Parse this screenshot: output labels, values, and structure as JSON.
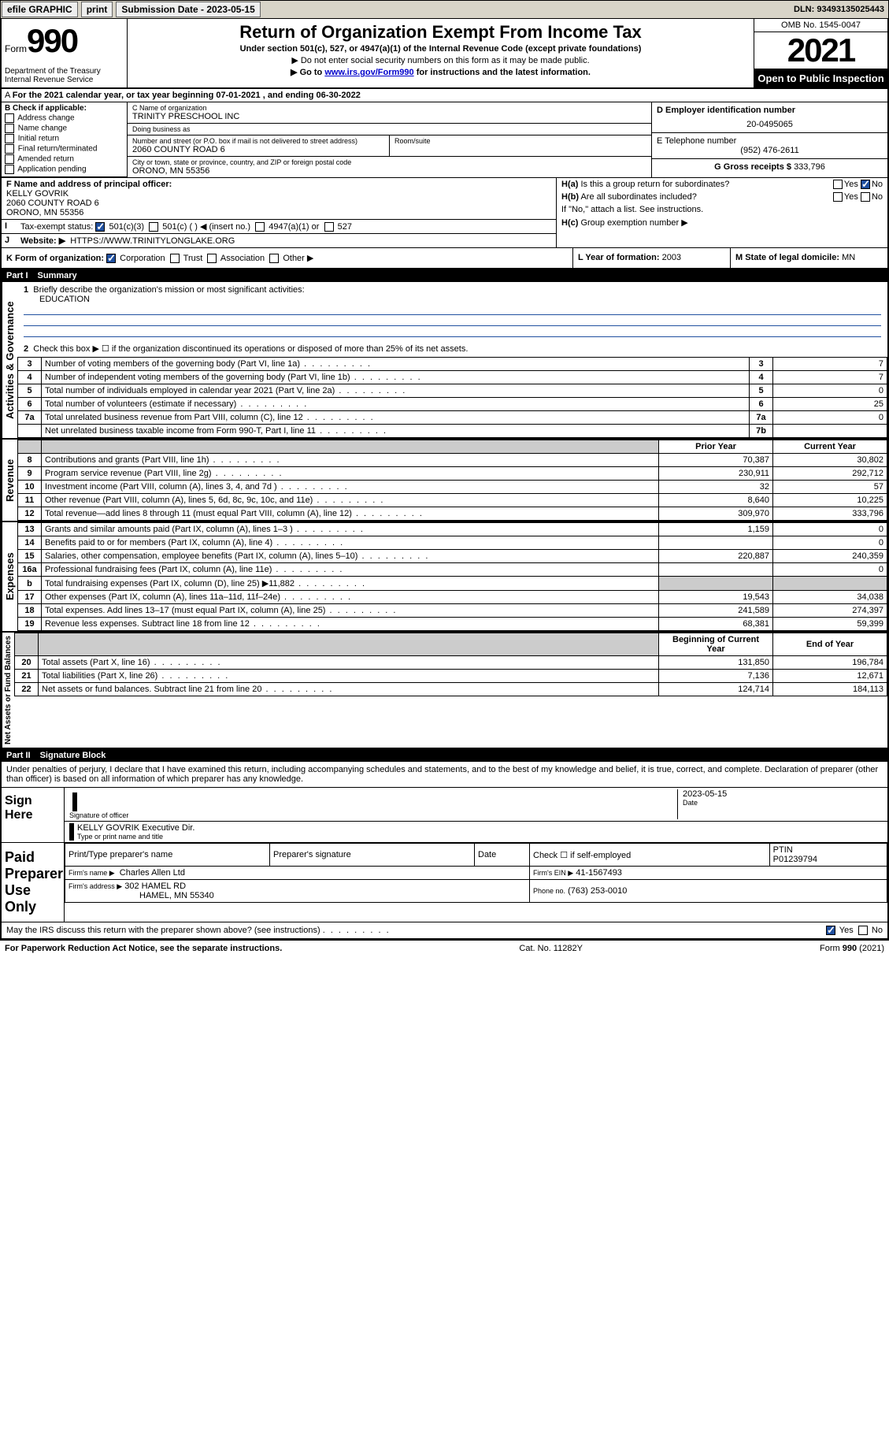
{
  "topbar": {
    "efile": "efile GRAPHIC",
    "print": "print",
    "submission": "Submission Date - 2023-05-15",
    "dln": "DLN: 93493135025443"
  },
  "header": {
    "form_label": "Form",
    "form_num": "990",
    "dept": "Department of the Treasury\nInternal Revenue Service",
    "title": "Return of Organization Exempt From Income Tax",
    "subtitle": "Under section 501(c), 527, or 4947(a)(1) of the Internal Revenue Code (except private foundations)",
    "note1": "▶ Do not enter social security numbers on this form as it may be made public.",
    "note2_pre": "▶ Go to ",
    "note2_link": "www.irs.gov/Form990",
    "note2_post": " for instructions and the latest information.",
    "omb": "OMB No. 1545-0047",
    "year": "2021",
    "open": "Open to Public Inspection"
  },
  "A": {
    "text": "For the 2021 calendar year, or tax year beginning 07-01-2021   , and ending 06-30-2022"
  },
  "B": {
    "label": "B Check if applicable:",
    "items": [
      "Address change",
      "Name change",
      "Initial return",
      "Final return/terminated",
      "Amended return",
      "Application pending"
    ]
  },
  "C": {
    "name_lbl": "C Name of organization",
    "name": "TRINITY PRESCHOOL INC",
    "dba_lbl": "Doing business as",
    "addr_lbl": "Number and street (or P.O. box if mail is not delivered to street address)",
    "room_lbl": "Room/suite",
    "addr": "2060 COUNTY ROAD 6",
    "city_lbl": "City or town, state or province, country, and ZIP or foreign postal code",
    "city": "ORONO, MN  55356"
  },
  "D": {
    "lbl": "D Employer identification number",
    "val": "20-0495065"
  },
  "E": {
    "lbl": "E Telephone number",
    "val": "(952) 476-2611"
  },
  "G": {
    "lbl": "G Gross receipts $",
    "val": "333,796"
  },
  "F": {
    "lbl": "F  Name and address of principal officer:",
    "name": "KELLY GOVRIK",
    "addr1": "2060 COUNTY ROAD 6",
    "addr2": "ORONO, MN  55356"
  },
  "H": {
    "a": "Is this a group return for subordinates?",
    "b": "Are all subordinates included?",
    "b_note": "If \"No,\" attach a list. See instructions.",
    "c": "Group exemption number ▶"
  },
  "I": {
    "lbl": "Tax-exempt status:",
    "opts": [
      "501(c)(3)",
      "501(c) (  ) ◀ (insert no.)",
      "4947(a)(1) or",
      "527"
    ]
  },
  "J": {
    "lbl": "Website: ▶",
    "val": "HTTPS://WWW.TRINITYLONGLAKE.ORG"
  },
  "K": {
    "lbl": "K Form of organization:",
    "opts": [
      "Corporation",
      "Trust",
      "Association",
      "Other ▶"
    ]
  },
  "L": {
    "lbl": "L Year of formation:",
    "val": "2003"
  },
  "M": {
    "lbl": "M State of legal domicile:",
    "val": "MN"
  },
  "part1": {
    "num": "Part I",
    "title": "Summary"
  },
  "summary": {
    "q1": "Briefly describe the organization's mission or most significant activities:",
    "q1val": "EDUCATION",
    "q2": "Check this box ▶ ☐  if the organization discontinued its operations or disposed of more than 25% of its net assets.",
    "rows_gov": [
      {
        "n": "3",
        "d": "Number of voting members of the governing body (Part VI, line 1a)",
        "box": "3",
        "v": "7"
      },
      {
        "n": "4",
        "d": "Number of independent voting members of the governing body (Part VI, line 1b)",
        "box": "4",
        "v": "7"
      },
      {
        "n": "5",
        "d": "Total number of individuals employed in calendar year 2021 (Part V, line 2a)",
        "box": "5",
        "v": "0"
      },
      {
        "n": "6",
        "d": "Total number of volunteers (estimate if necessary)",
        "box": "6",
        "v": "25"
      },
      {
        "n": "7a",
        "d": "Total unrelated business revenue from Part VIII, column (C), line 12",
        "box": "7a",
        "v": "0"
      },
      {
        "n": "",
        "d": "Net unrelated business taxable income from Form 990-T, Part I, line 11",
        "box": "7b",
        "v": ""
      }
    ],
    "col_hdr_prior": "Prior Year",
    "col_hdr_curr": "Current Year",
    "rows_rev": [
      {
        "n": "8",
        "d": "Contributions and grants (Part VIII, line 1h)",
        "p": "70,387",
        "c": "30,802"
      },
      {
        "n": "9",
        "d": "Program service revenue (Part VIII, line 2g)",
        "p": "230,911",
        "c": "292,712"
      },
      {
        "n": "10",
        "d": "Investment income (Part VIII, column (A), lines 3, 4, and 7d )",
        "p": "32",
        "c": "57"
      },
      {
        "n": "11",
        "d": "Other revenue (Part VIII, column (A), lines 5, 6d, 8c, 9c, 10c, and 11e)",
        "p": "8,640",
        "c": "10,225"
      },
      {
        "n": "12",
        "d": "Total revenue—add lines 8 through 11 (must equal Part VIII, column (A), line 12)",
        "p": "309,970",
        "c": "333,796"
      }
    ],
    "rows_exp": [
      {
        "n": "13",
        "d": "Grants and similar amounts paid (Part IX, column (A), lines 1–3 )",
        "p": "1,159",
        "c": "0"
      },
      {
        "n": "14",
        "d": "Benefits paid to or for members (Part IX, column (A), line 4)",
        "p": "",
        "c": "0"
      },
      {
        "n": "15",
        "d": "Salaries, other compensation, employee benefits (Part IX, column (A), lines 5–10)",
        "p": "220,887",
        "c": "240,359"
      },
      {
        "n": "16a",
        "d": "Professional fundraising fees (Part IX, column (A), line 11e)",
        "p": "",
        "c": "0"
      },
      {
        "n": "b",
        "d": "Total fundraising expenses (Part IX, column (D), line 25) ▶11,882",
        "p": "GREY",
        "c": "GREY"
      },
      {
        "n": "17",
        "d": "Other expenses (Part IX, column (A), lines 11a–11d, 11f–24e)",
        "p": "19,543",
        "c": "34,038"
      },
      {
        "n": "18",
        "d": "Total expenses. Add lines 13–17 (must equal Part IX, column (A), line 25)",
        "p": "241,589",
        "c": "274,397"
      },
      {
        "n": "19",
        "d": "Revenue less expenses. Subtract line 18 from line 12",
        "p": "68,381",
        "c": "59,399"
      }
    ],
    "col_hdr_beg": "Beginning of Current Year",
    "col_hdr_end": "End of Year",
    "rows_net": [
      {
        "n": "20",
        "d": "Total assets (Part X, line 16)",
        "p": "131,850",
        "c": "196,784"
      },
      {
        "n": "21",
        "d": "Total liabilities (Part X, line 26)",
        "p": "7,136",
        "c": "12,671"
      },
      {
        "n": "22",
        "d": "Net assets or fund balances. Subtract line 21 from line 20",
        "p": "124,714",
        "c": "184,113"
      }
    ],
    "vlabels": {
      "gov": "Activities & Governance",
      "rev": "Revenue",
      "exp": "Expenses",
      "net": "Net Assets or Fund Balances"
    }
  },
  "part2": {
    "num": "Part II",
    "title": "Signature Block"
  },
  "penalties": "Under penalties of perjury, I declare that I have examined this return, including accompanying schedules and statements, and to the best of my knowledge and belief, it is true, correct, and complete. Declaration of preparer (other than officer) is based on all information of which preparer has any knowledge.",
  "sign": {
    "here": "Sign Here",
    "sig_officer": "Signature of officer",
    "date": "Date",
    "date_val": "2023-05-15",
    "name": "KELLY GOVRIK  Executive Dir.",
    "name_lbl": "Type or print name and title"
  },
  "paid": {
    "label": "Paid Preparer Use Only",
    "cols": [
      "Print/Type preparer's name",
      "Preparer's signature",
      "Date"
    ],
    "check": "Check ☐ if self-employed",
    "ptin_lbl": "PTIN",
    "ptin": "P01239794",
    "firm_name_lbl": "Firm's name    ▶",
    "firm_name": "Charles Allen Ltd",
    "firm_ein_lbl": "Firm's EIN ▶",
    "firm_ein": "41-1567493",
    "firm_addr_lbl": "Firm's address ▶",
    "firm_addr1": "302 HAMEL RD",
    "firm_addr2": "HAMEL, MN  55340",
    "phone_lbl": "Phone no.",
    "phone": "(763) 253-0010"
  },
  "discuss": "May the IRS discuss this return with the preparer shown above? (see instructions)",
  "footer": {
    "left": "For Paperwork Reduction Act Notice, see the separate instructions.",
    "mid": "Cat. No. 11282Y",
    "right": "Form 990 (2021)"
  }
}
